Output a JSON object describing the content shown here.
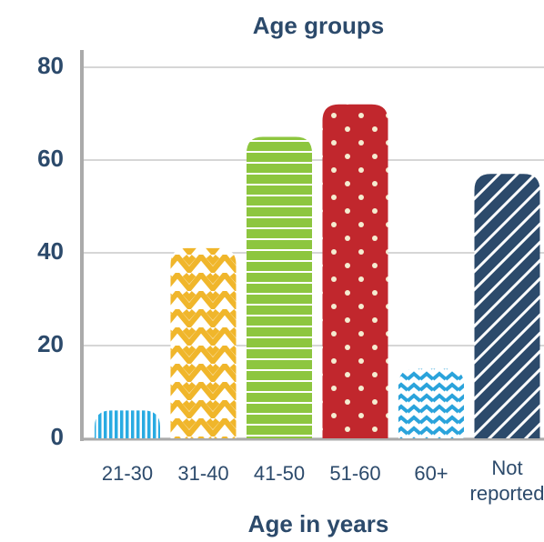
{
  "chart_data": {
    "type": "bar",
    "title": "Age groups",
    "x_label": "Age in years",
    "categories": [
      "21-30",
      "31-40",
      "41-50",
      "51-60",
      "60+",
      "Not reported"
    ],
    "values": [
      6,
      41,
      65,
      72,
      15,
      57
    ],
    "colors": [
      "#29abe2",
      "#f0b62b",
      "#8dc63f",
      "#c1272d",
      "#2aa3db",
      "#2c4a6b"
    ],
    "ylim": [
      0,
      80
    ],
    "yticks": [
      0,
      20,
      40,
      60,
      80
    ],
    "grid": true
  }
}
